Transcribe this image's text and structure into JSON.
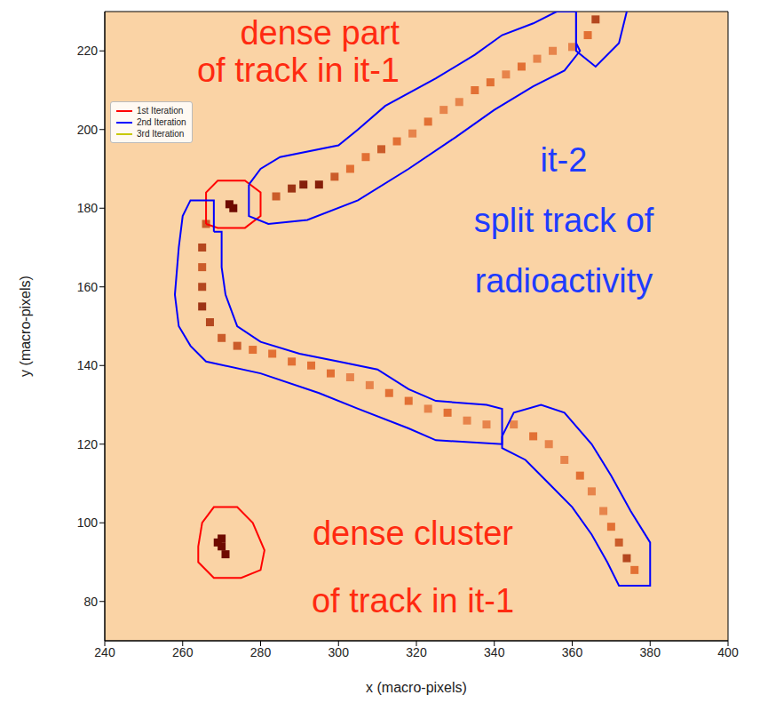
{
  "chart_data": {
    "type": "heatmap",
    "xlabel": "x (macro-pixels)",
    "ylabel": "y (macro-pixels)",
    "xlim": [
      240,
      400
    ],
    "xticks": [
      240,
      260,
      280,
      300,
      320,
      340,
      360,
      380,
      400
    ],
    "ylim": [
      70,
      230
    ],
    "yticks": [
      80,
      100,
      120,
      140,
      160,
      180,
      200,
      220
    ],
    "legend": "upper left",
    "cells": {
      "x": [
        284,
        288,
        291,
        295,
        299,
        303,
        307,
        311,
        315,
        319,
        323,
        327,
        331,
        335,
        339,
        343,
        347,
        351,
        355,
        360,
        364,
        366,
        272,
        273,
        266,
        265,
        265,
        265,
        265,
        267,
        270,
        274,
        278,
        283,
        288,
        293,
        298,
        303,
        308,
        313,
        318,
        323,
        328,
        333,
        338,
        345,
        350,
        354,
        358,
        362,
        365,
        368,
        370,
        372,
        374,
        376,
        270,
        270,
        271,
        269
      ],
      "y": [
        183,
        185,
        186,
        186,
        188,
        190,
        193,
        195,
        197,
        199,
        202,
        205,
        207,
        210,
        212,
        214,
        216,
        218,
        220,
        221,
        224,
        228,
        181,
        180,
        176,
        170,
        165,
        160,
        155,
        151,
        147,
        145,
        144,
        143,
        141,
        140,
        138,
        137,
        135,
        133,
        131,
        129,
        128,
        126,
        125,
        125,
        122,
        120,
        116,
        112,
        108,
        103,
        99,
        95,
        91,
        88,
        94,
        96,
        92,
        95
      ],
      "values": [
        0.6,
        0.8,
        0.9,
        0.9,
        0.6,
        0.5,
        0.5,
        0.6,
        0.5,
        0.4,
        0.5,
        0.4,
        0.4,
        0.5,
        0.5,
        0.4,
        0.5,
        0.4,
        0.4,
        0.4,
        0.5,
        0.7,
        1.0,
        1.0,
        0.6,
        0.7,
        0.6,
        0.7,
        0.8,
        0.7,
        0.6,
        0.6,
        0.5,
        0.5,
        0.5,
        0.5,
        0.5,
        0.4,
        0.4,
        0.5,
        0.5,
        0.4,
        0.5,
        0.4,
        0.4,
        0.4,
        0.5,
        0.4,
        0.4,
        0.5,
        0.4,
        0.4,
        0.5,
        0.6,
        0.7,
        0.5,
        1.0,
        1.0,
        1.0,
        1.0
      ]
    },
    "series": [
      {
        "name": "1st Iteration",
        "color": "#ff0000",
        "contours": [
          [
            [
              266,
              176
            ],
            [
              266,
              184
            ],
            [
              269,
              187
            ],
            [
              276,
              187
            ],
            [
              280,
              184
            ],
            [
              280,
              178
            ],
            [
              276,
              175
            ],
            [
              269,
              175
            ],
            [
              266,
              176
            ]
          ],
          [
            [
              264,
              94
            ],
            [
              265,
              100
            ],
            [
              268,
              104
            ],
            [
              274,
              104
            ],
            [
              278,
              100
            ],
            [
              281,
              93
            ],
            [
              280,
              88
            ],
            [
              275,
              86
            ],
            [
              268,
              86
            ],
            [
              264,
              90
            ],
            [
              264,
              94
            ]
          ]
        ]
      },
      {
        "name": "2nd Iteration",
        "color": "#0000ff",
        "contours": [
          [
            [
              277,
              186
            ],
            [
              280,
              190
            ],
            [
              285,
              193
            ],
            [
              300,
              196
            ],
            [
              305,
              200
            ],
            [
              312,
              206
            ],
            [
              325,
              213
            ],
            [
              335,
              219
            ],
            [
              342,
              224
            ],
            [
              350,
              227
            ],
            [
              356,
              230
            ],
            [
              361,
              230
            ],
            [
              361,
              222
            ],
            [
              362,
              220
            ],
            [
              358,
              215
            ],
            [
              350,
              211
            ],
            [
              340,
              205
            ],
            [
              330,
              198
            ],
            [
              318,
              190
            ],
            [
              305,
              182
            ],
            [
              292,
              177
            ],
            [
              282,
              176
            ],
            [
              277,
              178
            ],
            [
              277,
              186
            ]
          ],
          [
            [
              361,
              230
            ],
            [
              361,
              220
            ],
            [
              366,
              216
            ],
            [
              372,
              222
            ],
            [
              374,
              230
            ]
          ],
          [
            [
              268,
              174
            ],
            [
              268,
              182
            ],
            [
              262,
              182
            ],
            [
              260,
              178
            ],
            [
              259,
              170
            ],
            [
              258,
              158
            ],
            [
              259,
              150
            ],
            [
              262,
              145
            ],
            [
              266,
              141
            ],
            [
              280,
              138
            ],
            [
              295,
              133
            ],
            [
              305,
              129
            ],
            [
              318,
              124
            ],
            [
              325,
              121
            ],
            [
              342,
              120
            ],
            [
              342,
              129
            ],
            [
              338,
              130
            ],
            [
              325,
              131
            ],
            [
              318,
              134
            ],
            [
              310,
              139
            ],
            [
              300,
              141
            ],
            [
              290,
              143
            ],
            [
              280,
              146
            ],
            [
              274,
              150
            ],
            [
              271,
              158
            ],
            [
              270,
              165
            ],
            [
              270,
              174
            ],
            [
              268,
              174
            ]
          ],
          [
            [
              342,
              122
            ],
            [
              345,
              128
            ],
            [
              352,
              130
            ],
            [
              358,
              128
            ],
            [
              365,
              120
            ],
            [
              370,
              112
            ],
            [
              375,
              103
            ],
            [
              380,
              95
            ],
            [
              380,
              84
            ],
            [
              372,
              84
            ],
            [
              369,
              90
            ],
            [
              365,
              97
            ],
            [
              360,
              104
            ],
            [
              354,
              110
            ],
            [
              348,
              116
            ],
            [
              342,
              119
            ],
            [
              342,
              122
            ]
          ]
        ]
      },
      {
        "name": "3rd Iteration",
        "color": "#c8c800",
        "contours": []
      }
    ],
    "annotations": [
      {
        "text": "dense part\nof track in it-1",
        "color": "#ff2a10"
      },
      {
        "text": "it-2\nsplit track of\nradioactivity",
        "color": "#1e3cff"
      },
      {
        "text": "dense cluster\nof track in it-1",
        "color": "#ff2a10"
      }
    ]
  }
}
